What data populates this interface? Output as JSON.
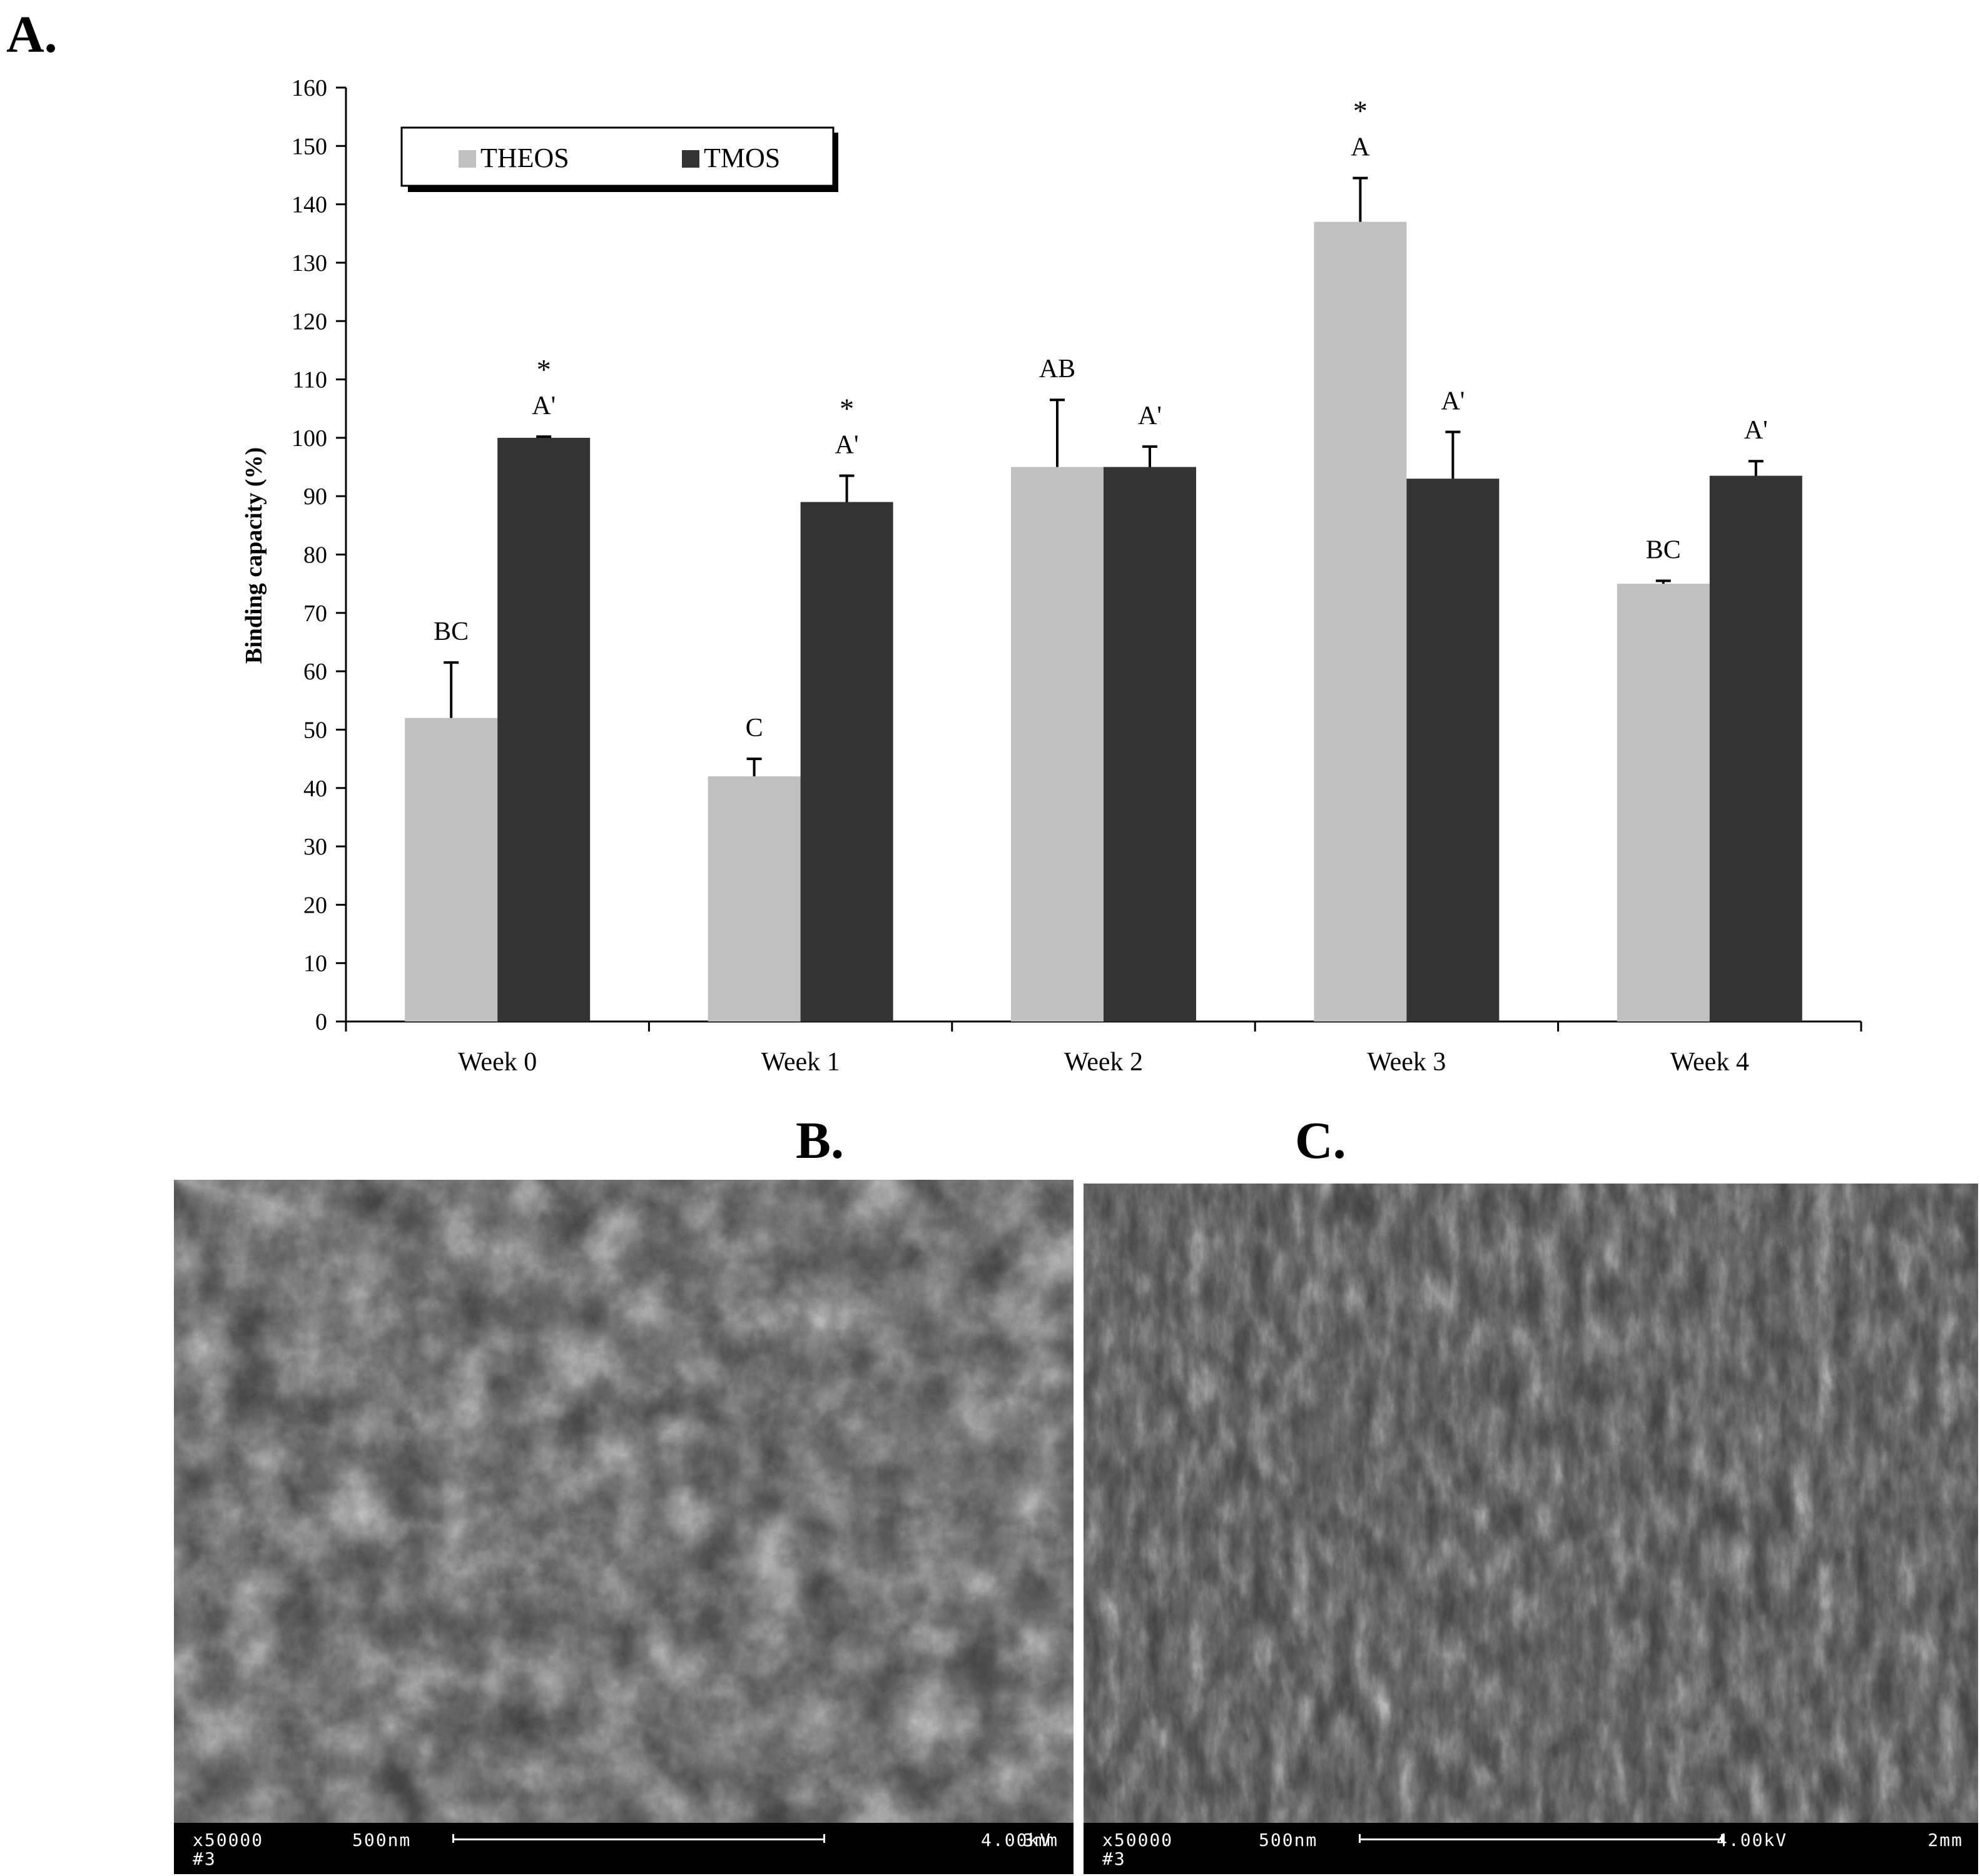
{
  "panels": {
    "a": "A.",
    "b": "B.",
    "c": "C."
  },
  "chart_data": {
    "type": "bar",
    "categories": [
      "Week 0",
      "Week 1",
      "Week 2",
      "Week 3",
      "Week 4"
    ],
    "series": [
      {
        "name": "THEOS",
        "color": "#c0c0c0",
        "values": [
          52,
          42,
          95,
          137,
          75
        ],
        "errors": [
          9.5,
          3,
          11.5,
          7.5,
          0.5
        ],
        "letters": [
          "BC",
          "C",
          "AB",
          "A",
          "BC"
        ],
        "stars": [
          "",
          "",
          "",
          "*",
          ""
        ]
      },
      {
        "name": "TMOS",
        "color": "#333333",
        "values": [
          100,
          89,
          95,
          93,
          93.5
        ],
        "errors": [
          0.2,
          4.5,
          3.5,
          8,
          2.5
        ],
        "letters": [
          "A'",
          "A'",
          "A'",
          "A'",
          "A'"
        ],
        "stars": [
          "*",
          "*",
          "",
          "",
          ""
        ]
      }
    ],
    "ylabel": "Binding capacity (%)",
    "xlabel": "",
    "ylim": [
      0,
      160
    ],
    "yticks": [
      "0",
      "10",
      "20",
      "30",
      "40",
      "50",
      "60",
      "70",
      "80",
      "90",
      "100",
      "110",
      "120",
      "130",
      "140",
      "150",
      "160"
    ],
    "legend_position": "top-left",
    "grid": false
  },
  "micrographs": [
    {
      "magnification": "x50000",
      "scale_label": "500nm",
      "voltage": "4.00kV",
      "distance": "3mm",
      "sample": "#3"
    },
    {
      "magnification": "x50000",
      "scale_label": "500nm",
      "voltage": "4.00kV",
      "distance": "2mm",
      "sample": "#3"
    }
  ]
}
